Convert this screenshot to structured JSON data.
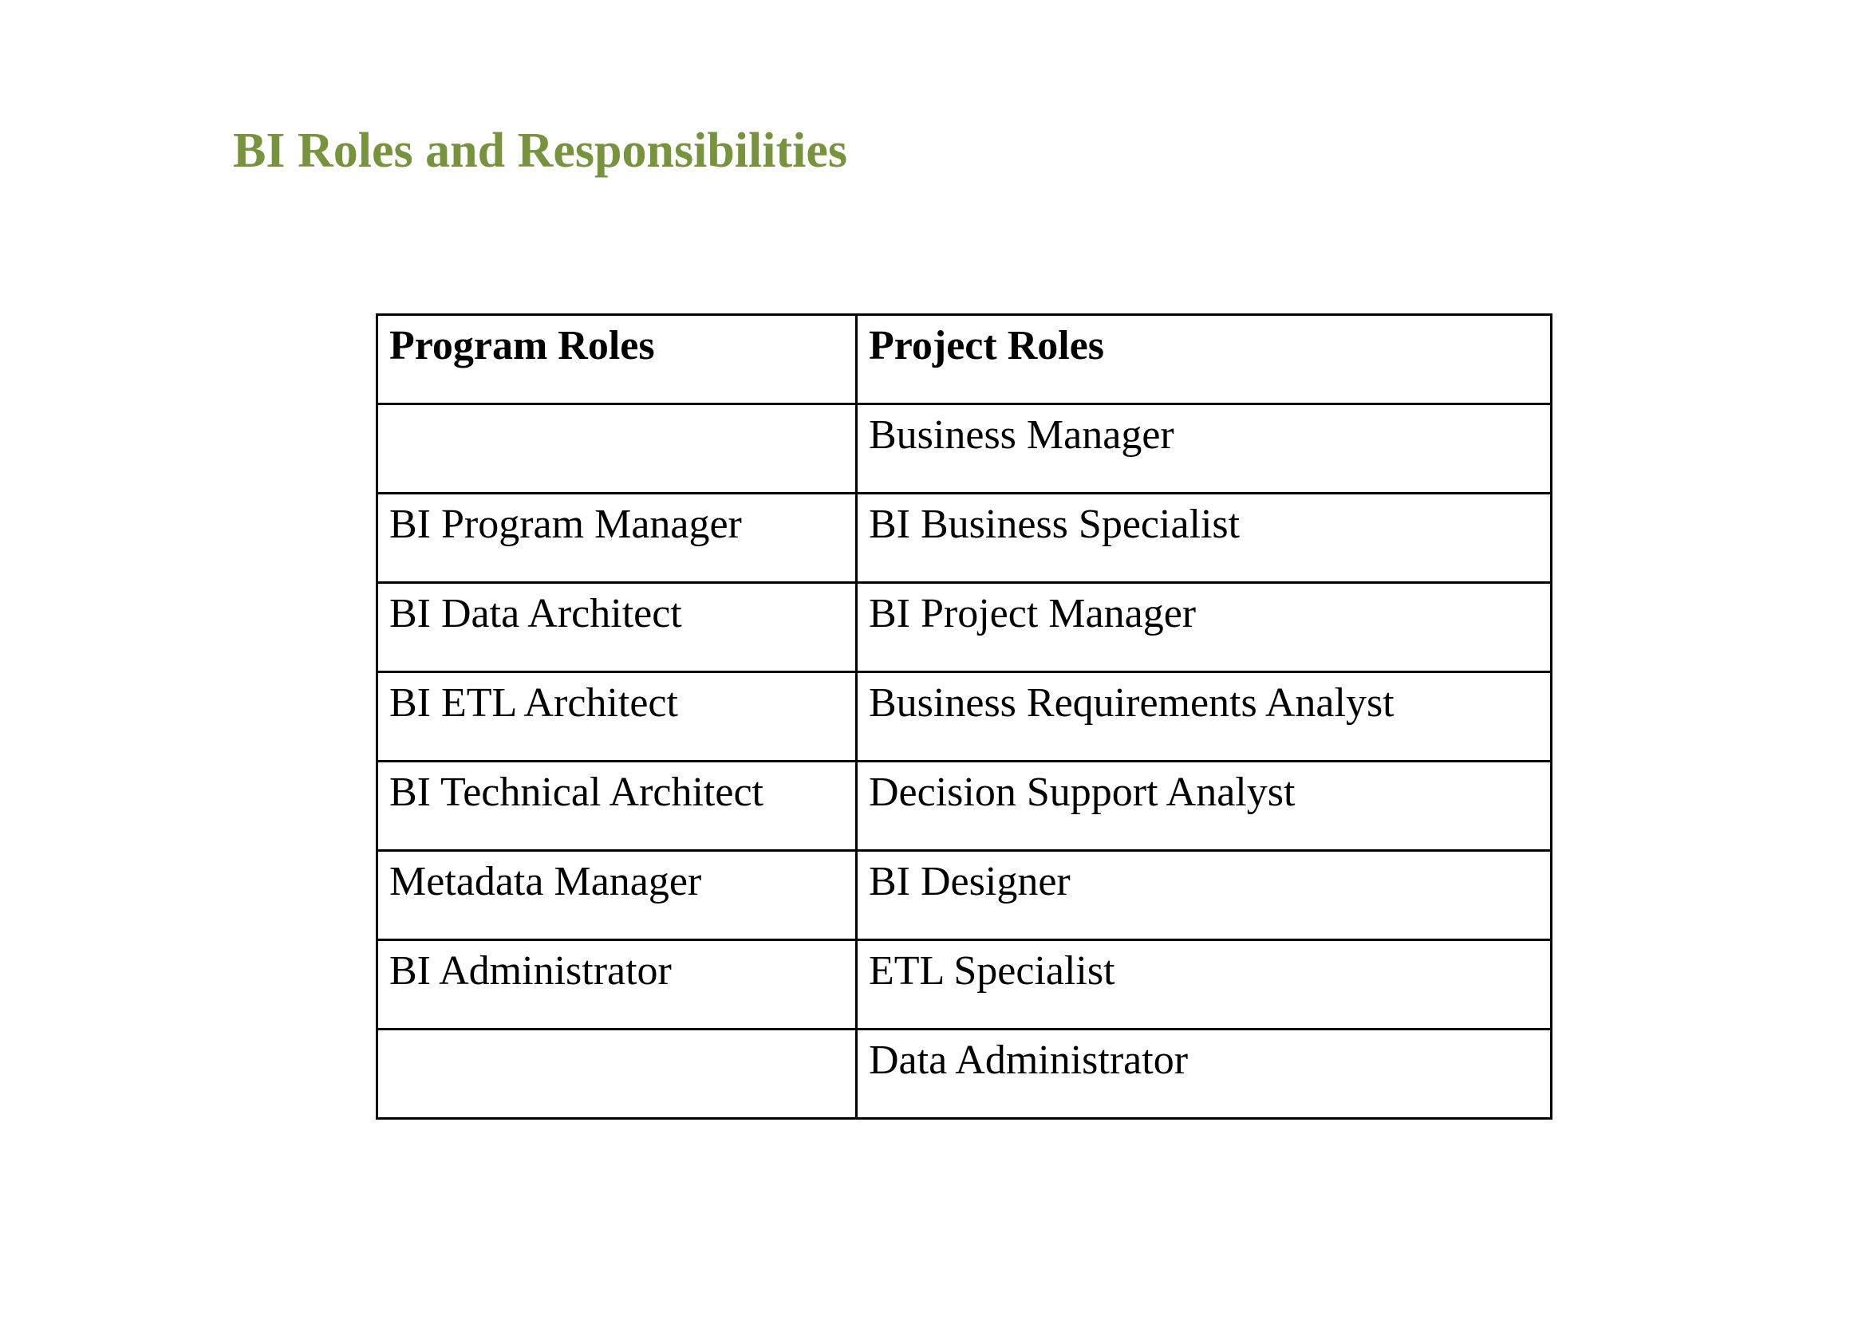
{
  "title": "BI Roles and Responsibilities",
  "colors": {
    "title": "#77933c",
    "text": "#000000",
    "border": "#000000",
    "background": "#ffffff"
  },
  "table": {
    "headers": {
      "program": "Program Roles",
      "project": "Project Roles"
    },
    "rows": [
      {
        "program": "",
        "project": "Business Manager"
      },
      {
        "program": "BI Program Manager",
        "project": "BI Business Specialist"
      },
      {
        "program": "BI Data Architect",
        "project": "BI Project Manager"
      },
      {
        "program": "BI ETL Architect",
        "project": "Business Requirements Analyst"
      },
      {
        "program": "BI Technical Architect",
        "project": "Decision Support Analyst"
      },
      {
        "program": "Metadata Manager",
        "project": "BI Designer"
      },
      {
        "program": "BI Administrator",
        "project": "ETL Specialist"
      },
      {
        "program": "",
        "project": "Data Administrator"
      }
    ]
  }
}
